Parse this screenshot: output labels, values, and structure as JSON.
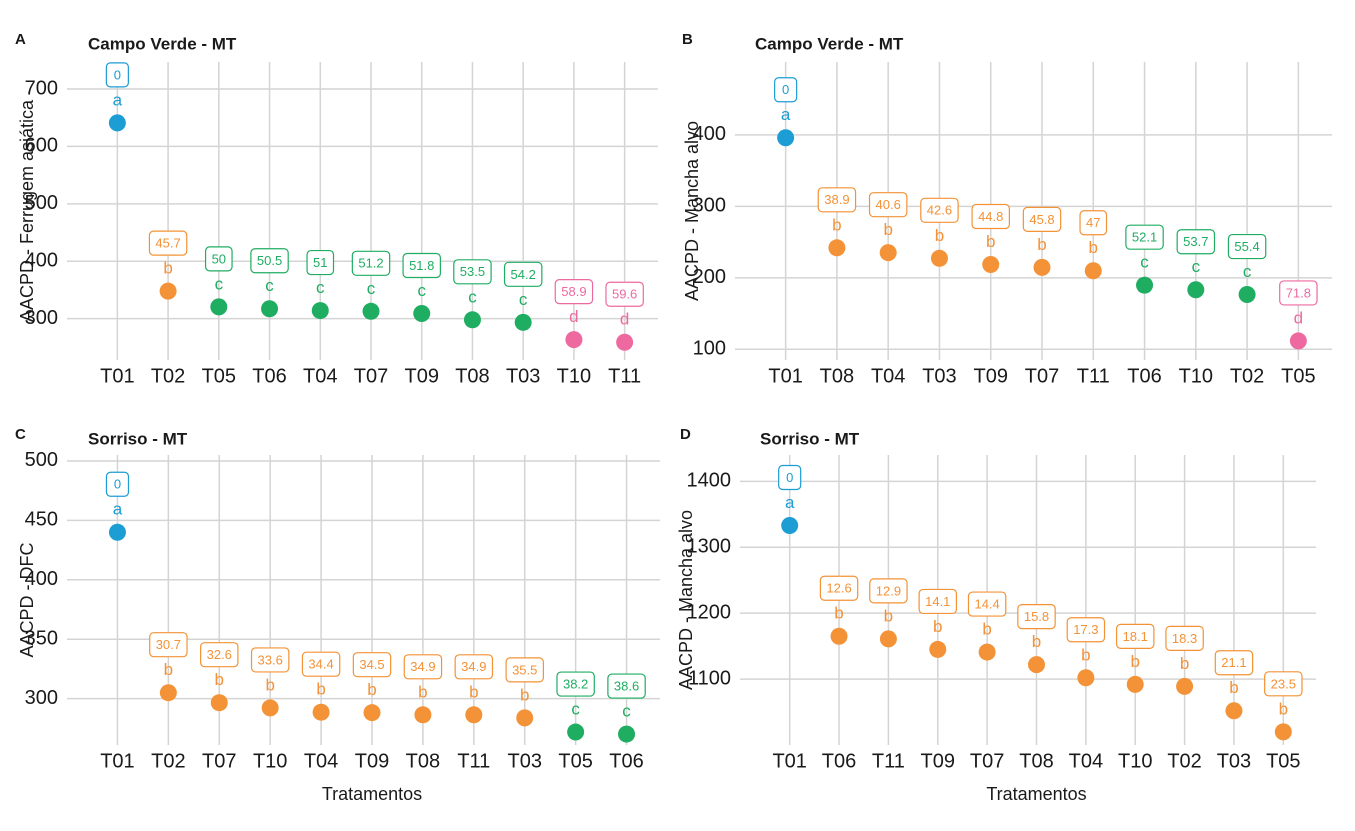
{
  "chart_data": [
    {
      "type": "dot",
      "panel": "A",
      "title": "Campo Verde - MT",
      "y_label": "AACPD - Ferrugem asiática",
      "categories": [
        "T01",
        "T02",
        "T05",
        "T06",
        "T04",
        "T07",
        "T09",
        "T08",
        "T03",
        "T10",
        "T11"
      ],
      "values": [
        641,
        348,
        320.5,
        317.3,
        314.1,
        312.8,
        309,
        298,
        293.6,
        263.5,
        258.9
      ],
      "groups": [
        "a",
        "b",
        "c",
        "c",
        "c",
        "c",
        "c",
        "c",
        "c",
        "d",
        "d"
      ],
      "efficiency": [
        0,
        45.7,
        50,
        50.5,
        51,
        51.2,
        51.8,
        53.5,
        54.2,
        58.9,
        59.6
      ],
      "ylim": [
        228,
        747
      ],
      "yticks": [
        300,
        400,
        500,
        600,
        700
      ],
      "grid": true,
      "group_colors": {
        "a": "#1c9dd3",
        "b": "#f39237",
        "c": "#1fad62",
        "d": "#ee69a0"
      }
    },
    {
      "type": "dot",
      "panel": "B",
      "title": "Campo Verde - MT",
      "y_label": "AACPD - Mancha alvo",
      "categories": [
        "T01",
        "T08",
        "T04",
        "T03",
        "T09",
        "T07",
        "T11",
        "T06",
        "T10",
        "T02",
        "T05"
      ],
      "values": [
        396,
        242,
        235.2,
        227.3,
        218.6,
        214.6,
        209.9,
        189.7,
        183.3,
        176.6,
        111.7
      ],
      "groups": [
        "a",
        "b",
        "b",
        "b",
        "b",
        "b",
        "b",
        "c",
        "c",
        "c",
        "d"
      ],
      "efficiency": [
        0,
        38.9,
        40.6,
        42.6,
        44.8,
        45.8,
        47,
        52.1,
        53.7,
        55.4,
        71.8
      ],
      "ylim": [
        85,
        502
      ],
      "yticks": [
        100,
        200,
        300,
        400
      ],
      "grid": true,
      "group_colors": {
        "a": "#1c9dd3",
        "b": "#f39237",
        "c": "#1fad62",
        "d": "#ee69a0"
      }
    },
    {
      "type": "dot",
      "panel": "C",
      "title": "Sorriso - MT",
      "y_label": "AACPD - DFC",
      "x_label": "Tratamentos",
      "categories": [
        "T01",
        "T02",
        "T07",
        "T10",
        "T04",
        "T09",
        "T08",
        "T11",
        "T03",
        "T05",
        "T06"
      ],
      "values": [
        440,
        305,
        296.6,
        292.2,
        288.6,
        288.2,
        286.4,
        286.4,
        283.8,
        271.9,
        270.2
      ],
      "groups": [
        "a",
        "b",
        "b",
        "b",
        "b",
        "b",
        "b",
        "b",
        "b",
        "c",
        "c"
      ],
      "efficiency": [
        0,
        30.7,
        32.6,
        33.6,
        34.4,
        34.5,
        34.9,
        34.9,
        35.5,
        38.2,
        38.6
      ],
      "ylim": [
        261,
        505
      ],
      "yticks": [
        300,
        350,
        400,
        450,
        500
      ],
      "grid": true,
      "group_colors": {
        "a": "#1c9dd3",
        "b": "#f39237",
        "c": "#1fad62"
      }
    },
    {
      "type": "dot",
      "panel": "D",
      "title": "Sorriso - MT",
      "y_label": "AACPD - Mancha alvo",
      "x_label": "Tratamentos",
      "categories": [
        "T01",
        "T06",
        "T11",
        "T09",
        "T07",
        "T08",
        "T04",
        "T10",
        "T02",
        "T03",
        "T05"
      ],
      "values": [
        1333,
        1165,
        1161,
        1145,
        1141,
        1122,
        1102,
        1092,
        1089,
        1052,
        1020
      ],
      "groups": [
        "a",
        "b",
        "b",
        "b",
        "b",
        "b",
        "b",
        "b",
        "b",
        "b",
        "b"
      ],
      "efficiency": [
        0,
        12.6,
        12.9,
        14.1,
        14.4,
        15.8,
        17.3,
        18.1,
        18.3,
        21.1,
        23.5
      ],
      "ylim": [
        1000,
        1440
      ],
      "yticks": [
        1100,
        1200,
        1300,
        1400
      ],
      "grid": true,
      "group_colors": {
        "a": "#1c9dd3",
        "b": "#f39237"
      }
    }
  ]
}
